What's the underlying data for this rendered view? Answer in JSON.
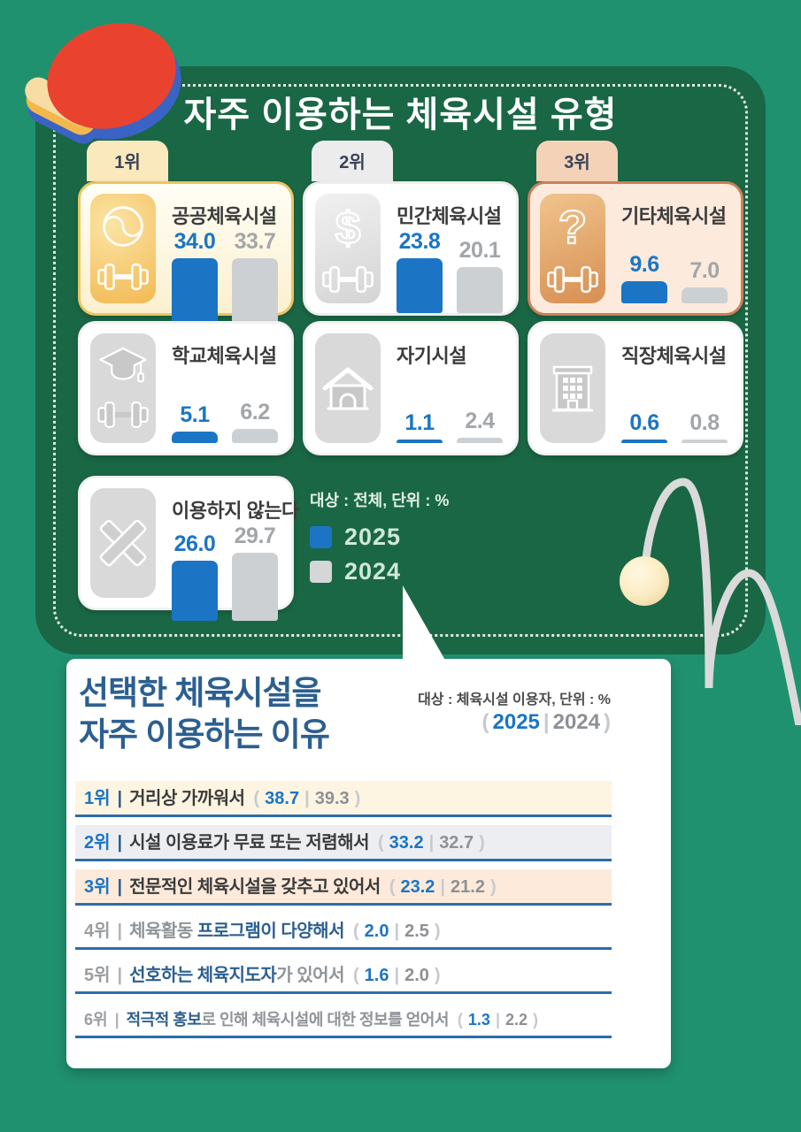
{
  "colors": {
    "background_teal": "#20916F",
    "panel_green": "#1A6745",
    "accent_blue": "#1B75C4",
    "bar_gray": "#CDD0D2",
    "navy_text": "#2C5F90",
    "gold": "#EAC661",
    "bronze": "#C8805A"
  },
  "panel": {
    "title": "자주 이용하는 체육시설 유형",
    "legend": {
      "note": "대상 : 전체, 단위 : %",
      "y2025": "2025",
      "y2024": "2024"
    },
    "cards": [
      {
        "rank": "1위",
        "name": "공공체육시설",
        "v2025": "34.0",
        "v2024": "33.7"
      },
      {
        "rank": "2위",
        "name": "민간체육시설",
        "v2025": "23.8",
        "v2024": "20.1"
      },
      {
        "rank": "3위",
        "name": "기타체육시설",
        "v2025": "9.6",
        "v2024": "7.0"
      },
      {
        "name": "학교체육시설",
        "v2025": "5.1",
        "v2024": "6.2"
      },
      {
        "name": "자기시설",
        "v2025": "1.1",
        "v2024": "2.4"
      },
      {
        "name": "직장체육시설",
        "v2025": "0.6",
        "v2024": "0.8"
      },
      {
        "name": "이용하지 않는다",
        "v2025": "26.0",
        "v2024": "29.7"
      }
    ]
  },
  "reasons": {
    "title1": "선택한 체육시설을",
    "title2": "자주 이용하는 이유",
    "note": "대상 : 체육시설 이용자, 단위 : %",
    "open": "(",
    "close": ")",
    "sep": "|",
    "divider": "|",
    "y2025": "2025",
    "y2024": "2024",
    "rows": [
      {
        "rank": "1위",
        "main": "거리상 가까워서",
        "pre": "",
        "strong": "",
        "post": "",
        "v2025": "38.7",
        "v2024": "39.3"
      },
      {
        "rank": "2위",
        "main": "시설 이용료가 무료 또는 저렴해서",
        "pre": "",
        "strong": "",
        "post": "",
        "v2025": "33.2",
        "v2024": "32.7"
      },
      {
        "rank": "3위",
        "main": "전문적인 체육시설을 갖추고 있어서",
        "pre": "",
        "strong": "",
        "post": "",
        "v2025": "23.2",
        "v2024": "21.2"
      },
      {
        "rank": "4위",
        "main": "",
        "pre": "체육활동 ",
        "strong": "프로그램이 다양해서",
        "post": "",
        "v2025": "2.0",
        "v2024": "2.5"
      },
      {
        "rank": "5위",
        "main": "",
        "pre": "",
        "strong": "선호하는 체육지도자",
        "post": "가 있어서",
        "v2025": "1.6",
        "v2024": "2.0"
      },
      {
        "rank": "6위",
        "main": "",
        "pre": "",
        "strong": "적극적 홍보",
        "post": "로 인해 체육시설에 대한 정보를 얻어서",
        "v2025": "1.3",
        "v2024": "2.2"
      }
    ]
  },
  "chart_data": [
    {
      "type": "bar",
      "title": "자주 이용하는 체육시설 유형",
      "categories": [
        "공공체육시설",
        "민간체육시설",
        "기타체육시설",
        "학교체육시설",
        "자기시설",
        "직장체육시설",
        "이용하지 않는다"
      ],
      "series": [
        {
          "name": "2025",
          "color": "#1B75C4",
          "values": [
            34.0,
            23.8,
            9.6,
            5.1,
            1.1,
            0.6,
            26.0
          ]
        },
        {
          "name": "2024",
          "color": "#CDD0D2",
          "values": [
            33.7,
            20.1,
            7.0,
            6.2,
            2.4,
            0.8,
            29.7
          ]
        }
      ],
      "ranks": [
        "1위",
        "2위",
        "3위",
        null,
        null,
        null,
        null
      ],
      "unit": "%",
      "population": "전체",
      "legend_position": "bottom-center"
    },
    {
      "type": "table",
      "title": "선택한 체육시설을 자주 이용하는 이유",
      "categories": [
        "거리상 가까워서",
        "시설 이용료가 무료 또는 저렴해서",
        "전문적인 체육시설을 갖추고 있어서",
        "체육활동 프로그램이 다양해서",
        "선호하는 체육지도자가 있어서",
        "적극적 홍보로 인해 체육시설에 대한 정보를 얻어서"
      ],
      "series": [
        {
          "name": "2025",
          "values": [
            38.7,
            33.2,
            23.2,
            2.0,
            1.6,
            1.3
          ]
        },
        {
          "name": "2024",
          "values": [
            39.3,
            32.7,
            21.2,
            2.5,
            2.0,
            2.2
          ]
        }
      ],
      "unit": "%",
      "population": "체육시설 이용자"
    }
  ]
}
